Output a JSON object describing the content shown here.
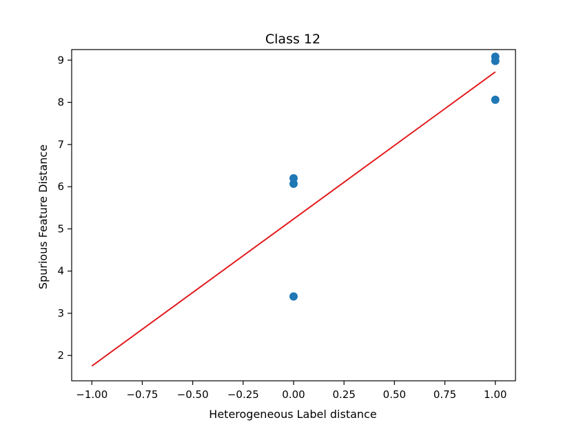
{
  "chart_data": {
    "type": "scatter",
    "title": "Class 12",
    "xlabel": "Heterogeneous Label distance",
    "ylabel": "Spurious Feature Distance",
    "xlim": [
      -1.1,
      1.1
    ],
    "ylim": [
      1.4,
      9.25
    ],
    "x_ticks": [
      -1.0,
      -0.75,
      -0.5,
      -0.25,
      0.0,
      0.25,
      0.5,
      0.75,
      1.0
    ],
    "x_tick_labels": [
      "−1.00",
      "−0.75",
      "−0.50",
      "−0.25",
      "0.00",
      "0.25",
      "0.50",
      "0.75",
      "1.00"
    ],
    "y_ticks": [
      2,
      3,
      4,
      5,
      6,
      7,
      8,
      9
    ],
    "y_tick_labels": [
      "2",
      "3",
      "4",
      "5",
      "6",
      "7",
      "8",
      "9"
    ],
    "grid": false,
    "series": [
      {
        "kind": "scatter",
        "color": "#1f77b4",
        "points": [
          {
            "x": 0.0,
            "y": 6.2
          },
          {
            "x": 0.0,
            "y": 6.07
          },
          {
            "x": 0.0,
            "y": 3.4
          },
          {
            "x": 1.0,
            "y": 9.08
          },
          {
            "x": 1.0,
            "y": 8.98
          },
          {
            "x": 1.0,
            "y": 8.06
          }
        ]
      },
      {
        "kind": "line",
        "color": "#e31a1c",
        "points": [
          {
            "x": -1.0,
            "y": 1.75
          },
          {
            "x": 1.0,
            "y": 8.72
          }
        ]
      }
    ]
  }
}
